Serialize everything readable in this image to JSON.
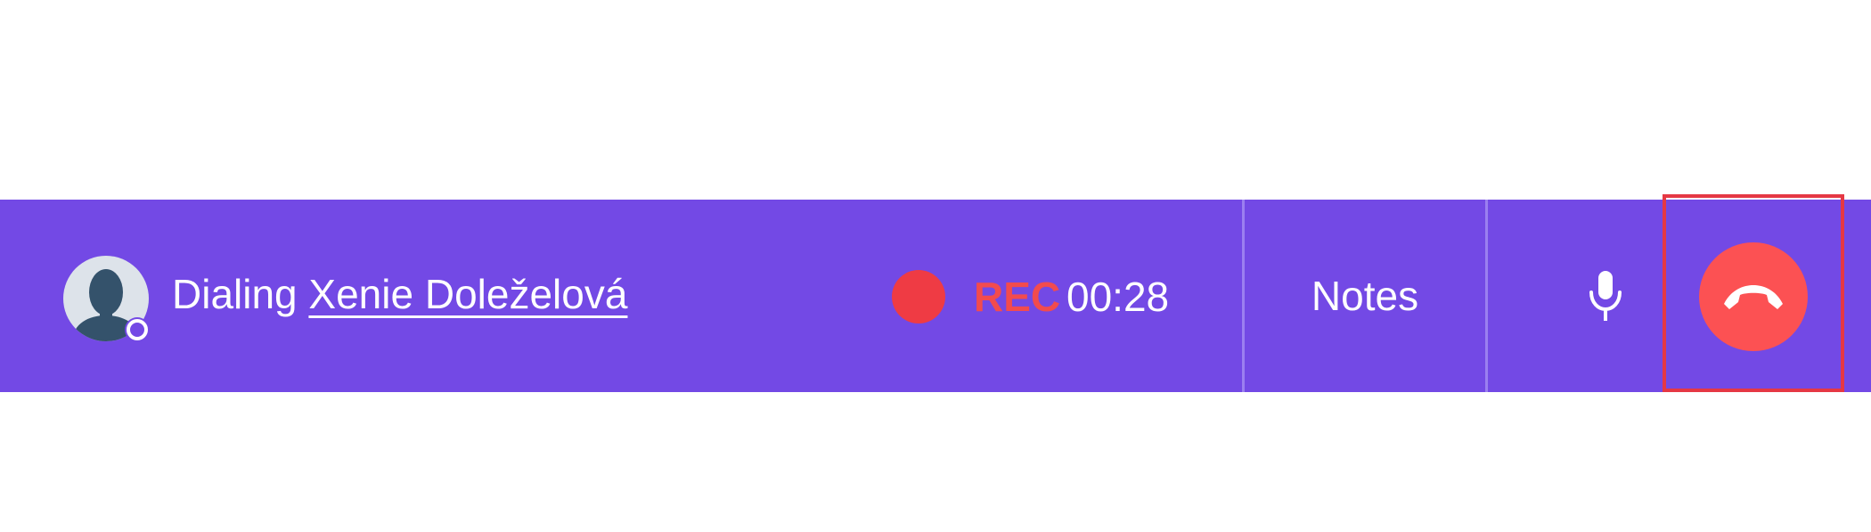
{
  "call_bar": {
    "status_prefix": "Dialing",
    "contact_name": "Xenie Doleželová",
    "rec_label": "REC",
    "timer": "00:28",
    "notes_label": "Notes",
    "icons": {
      "avatar": "person-avatar-icon",
      "presence": "presence-status-icon",
      "recording": "record-dot-icon",
      "mic": "microphone-icon",
      "hangup": "phone-hangup-icon"
    },
    "colors": {
      "bar_background": "#7349e5",
      "rec_red": "#ef3b44",
      "hangup_red": "#fc5153",
      "focus_outline": "#e53844"
    }
  }
}
